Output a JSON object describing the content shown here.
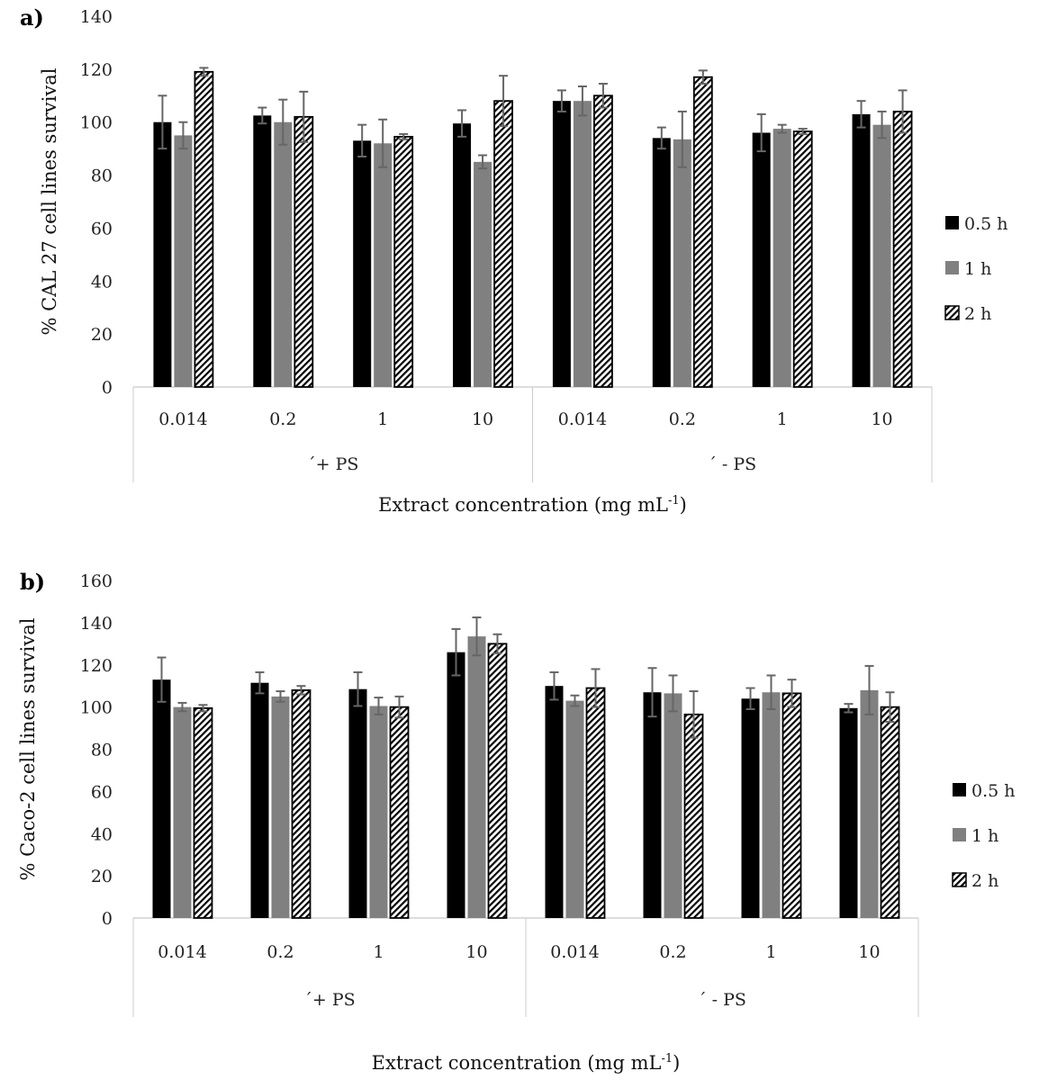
{
  "chart_data": [
    {
      "type": "bar",
      "panel": "a)",
      "ylabel": "%  CAL 27 cell lines survival",
      "xlabel": {
        "text": "Extract concentration (mg mL",
        "sup": "-1",
        "end": ")"
      },
      "ylim": [
        0,
        140
      ],
      "yticks": [
        0,
        20,
        40,
        60,
        80,
        100,
        120,
        140
      ],
      "groups": [
        "´+ PS",
        "´ - PS"
      ],
      "categories": [
        "0.014",
        "0.2",
        "1",
        "10",
        "0.014",
        "0.2",
        "1",
        "10"
      ],
      "legend_position": "right",
      "series": [
        {
          "name": "0.5 h",
          "color": "#000000",
          "values": [
            100,
            102.5,
            93,
            99.5,
            108,
            94,
            96,
            103
          ],
          "errors": [
            10,
            3,
            6,
            5,
            4,
            4,
            7,
            5
          ]
        },
        {
          "name": "1 h",
          "color": "#808080",
          "values": [
            95,
            100,
            92,
            85,
            108,
            93.5,
            97.5,
            99
          ],
          "errors": [
            5,
            8.5,
            9,
            2.5,
            5.5,
            10.5,
            1.5,
            5
          ]
        },
        {
          "name": "2 h",
          "color": "hatch",
          "values": [
            119,
            102,
            94.5,
            108,
            110,
            117,
            96.5,
            104
          ],
          "errors": [
            1.5,
            9.5,
            1,
            9.5,
            4.5,
            2.5,
            1,
            8
          ]
        }
      ]
    },
    {
      "type": "bar",
      "panel": "b)",
      "ylabel": "%  Caco-2 cell lines survival",
      "xlabel": {
        "text": "Extract concentration (mg mL",
        "sup": "-1",
        "end": ")"
      },
      "ylim": [
        0,
        160
      ],
      "yticks": [
        0,
        20,
        40,
        60,
        80,
        100,
        120,
        140,
        160
      ],
      "groups": [
        "´+ PS",
        "´ - PS"
      ],
      "categories": [
        "0.014",
        "0.2",
        "1",
        "10",
        "0.014",
        "0.2",
        "1",
        "10"
      ],
      "legend_position": "right",
      "series": [
        {
          "name": "0.5 h",
          "color": "#000000",
          "values": [
            113,
            111.5,
            108.5,
            126,
            110,
            107,
            104,
            99.5
          ],
          "errors": [
            10.5,
            5,
            8,
            11,
            6.5,
            11.5,
            5,
            2
          ]
        },
        {
          "name": "1 h",
          "color": "#808080",
          "values": [
            100,
            105,
            100.5,
            133.5,
            103,
            106.5,
            107,
            108
          ],
          "errors": [
            2,
            2.5,
            4,
            9,
            2.5,
            8.5,
            8,
            11.5
          ]
        },
        {
          "name": "2 h",
          "color": "hatch",
          "values": [
            99.5,
            108,
            100,
            130,
            109,
            96.5,
            106.5,
            100
          ],
          "errors": [
            1.5,
            2,
            5,
            4.5,
            9,
            11,
            6.5,
            7
          ]
        }
      ]
    }
  ]
}
